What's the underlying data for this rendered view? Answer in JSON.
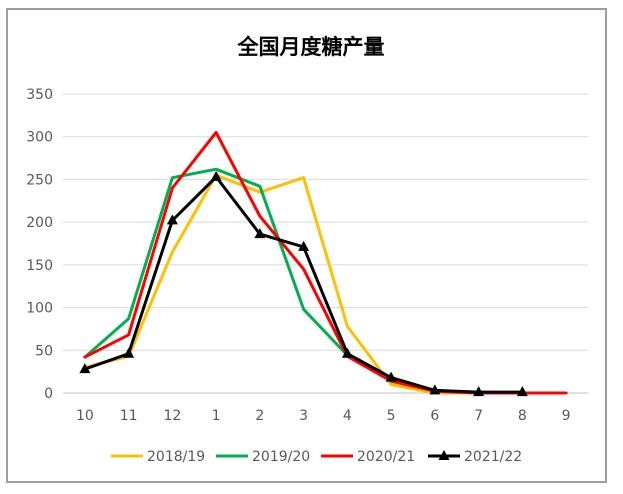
{
  "chart_data": {
    "type": "line",
    "title": "全国月度糖产量",
    "xlabel": "",
    "ylabel": "",
    "categories": [
      "10",
      "11",
      "12",
      "1",
      "2",
      "3",
      "4",
      "5",
      "6",
      "7",
      "8",
      "9"
    ],
    "ylim": [
      0,
      350
    ],
    "yticks": [
      0,
      50,
      100,
      150,
      200,
      250,
      300,
      350
    ],
    "grid": "horizontal",
    "legend_position": "bottom",
    "series": [
      {
        "name": "2018/19",
        "color": "#FFC000",
        "marker": "none",
        "values": [
          30,
          43,
          165,
          255,
          235,
          252,
          78,
          10,
          0,
          0,
          0,
          null
        ]
      },
      {
        "name": "2019/20",
        "color": "#00B050",
        "marker": "none",
        "values": [
          42,
          87,
          252,
          262,
          242,
          98,
          44,
          17,
          3,
          0,
          0,
          null
        ]
      },
      {
        "name": "2020/21",
        "color": "#FF0000",
        "marker": "none",
        "values": [
          42,
          68,
          240,
          305,
          207,
          145,
          43,
          14,
          2,
          0,
          0,
          0
        ]
      },
      {
        "name": "2021/22",
        "color": "#000000",
        "marker": "triangle",
        "values": [
          28,
          46,
          202,
          253,
          186,
          171,
          46,
          18,
          3,
          1,
          1,
          null
        ]
      }
    ]
  }
}
